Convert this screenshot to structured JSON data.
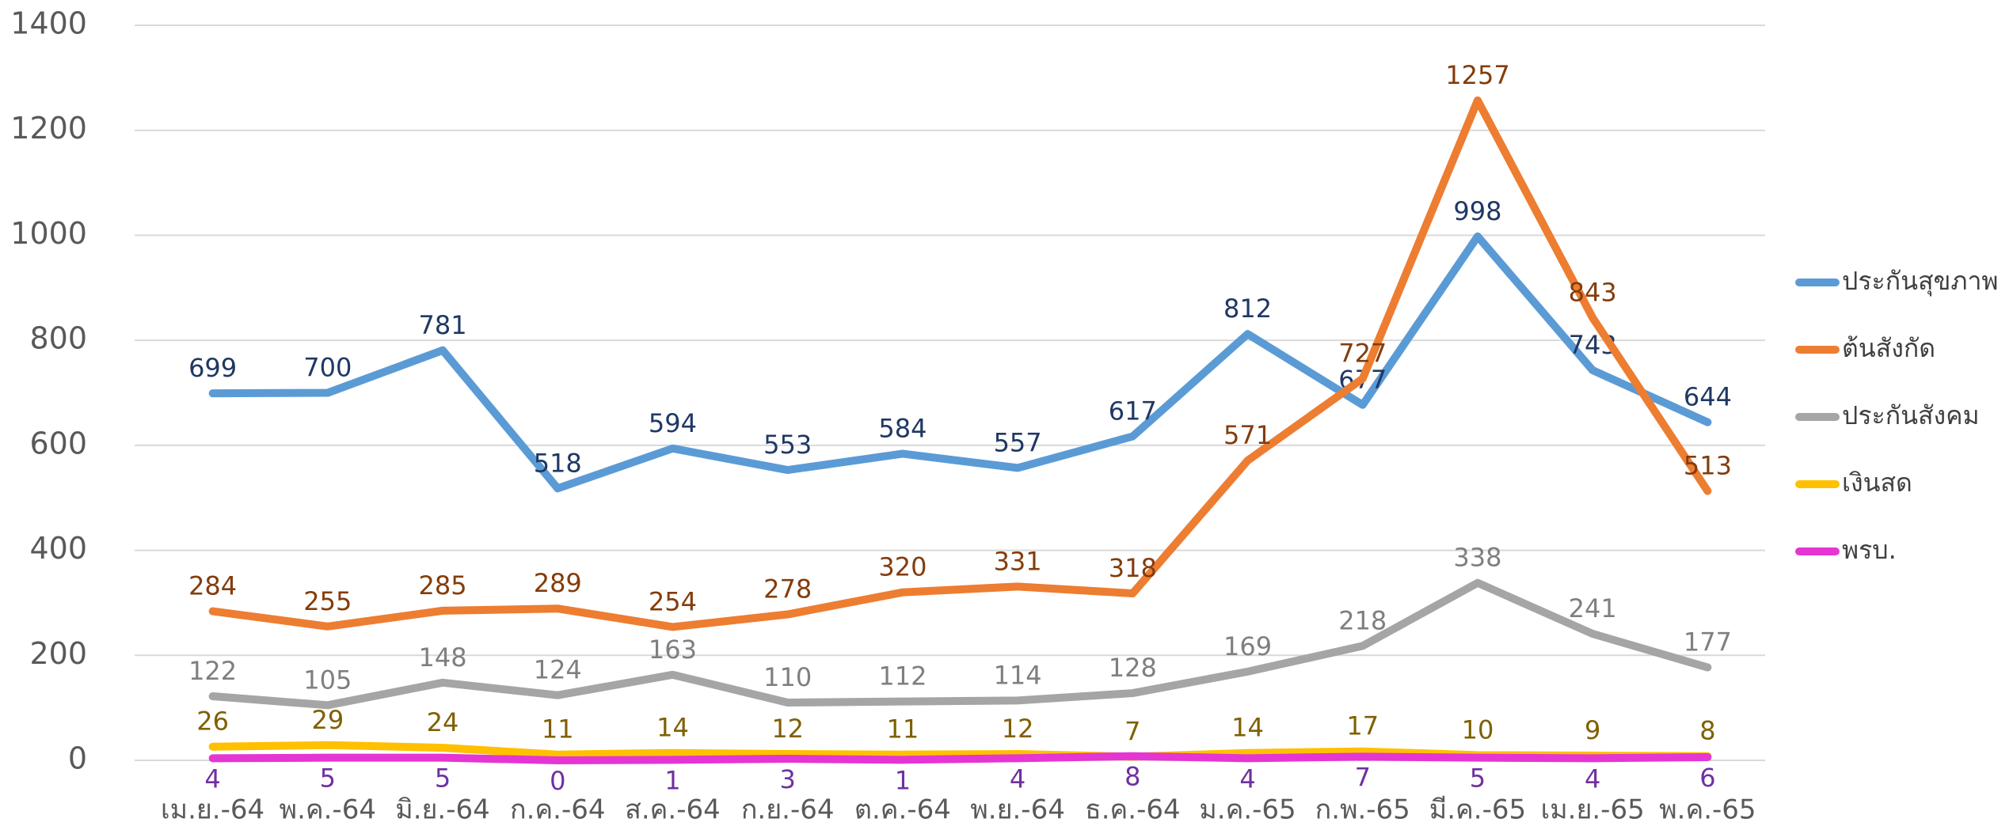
{
  "chart_data": {
    "type": "line",
    "categories": [
      "เม.ย.-64",
      "พ.ค.-64",
      "มิ.ย.-64",
      "ก.ค.-64",
      "ส.ค.-64",
      "ก.ย.-64",
      "ต.ค.-64",
      "พ.ย.-64",
      "ธ.ค.-64",
      "ม.ค.-65",
      "ก.พ.-65",
      "มี.ค.-65",
      "เม.ย.-65",
      "พ.ค.-65"
    ],
    "series": [
      {
        "name": "ประกันสุขภาพ",
        "color": "#5b9bd5",
        "label_color": "#1f3864",
        "values": [
          699,
          700,
          781,
          518,
          594,
          553,
          584,
          557,
          617,
          812,
          677,
          998,
          743,
          644
        ]
      },
      {
        "name": "ต้นสังกัด",
        "color": "#ed7d31",
        "label_color": "#843c0c",
        "values": [
          284,
          255,
          285,
          289,
          254,
          278,
          320,
          331,
          318,
          571,
          727,
          1257,
          843,
          513
        ]
      },
      {
        "name": "ประกันสังคม",
        "color": "#a5a5a5",
        "label_color": "#7f7f7f",
        "values": [
          122,
          105,
          148,
          124,
          163,
          110,
          112,
          114,
          128,
          169,
          218,
          338,
          241,
          177
        ]
      },
      {
        "name": "เงินสด",
        "color": "#ffc000",
        "label_color": "#7f6000",
        "values": [
          26,
          29,
          24,
          11,
          14,
          12,
          11,
          12,
          7,
          14,
          17,
          10,
          9,
          8
        ]
      },
      {
        "name": "พรบ.",
        "color": "#e535d2",
        "label_color": "#7030a0",
        "values": [
          4,
          5,
          5,
          0,
          1,
          3,
          1,
          4,
          8,
          4,
          7,
          5,
          4,
          6
        ]
      }
    ],
    "ylim": [
      0,
      1400
    ],
    "yticks": [
      0,
      200,
      400,
      600,
      800,
      1000,
      1200,
      1400
    ],
    "grid": true,
    "legend": "right"
  }
}
